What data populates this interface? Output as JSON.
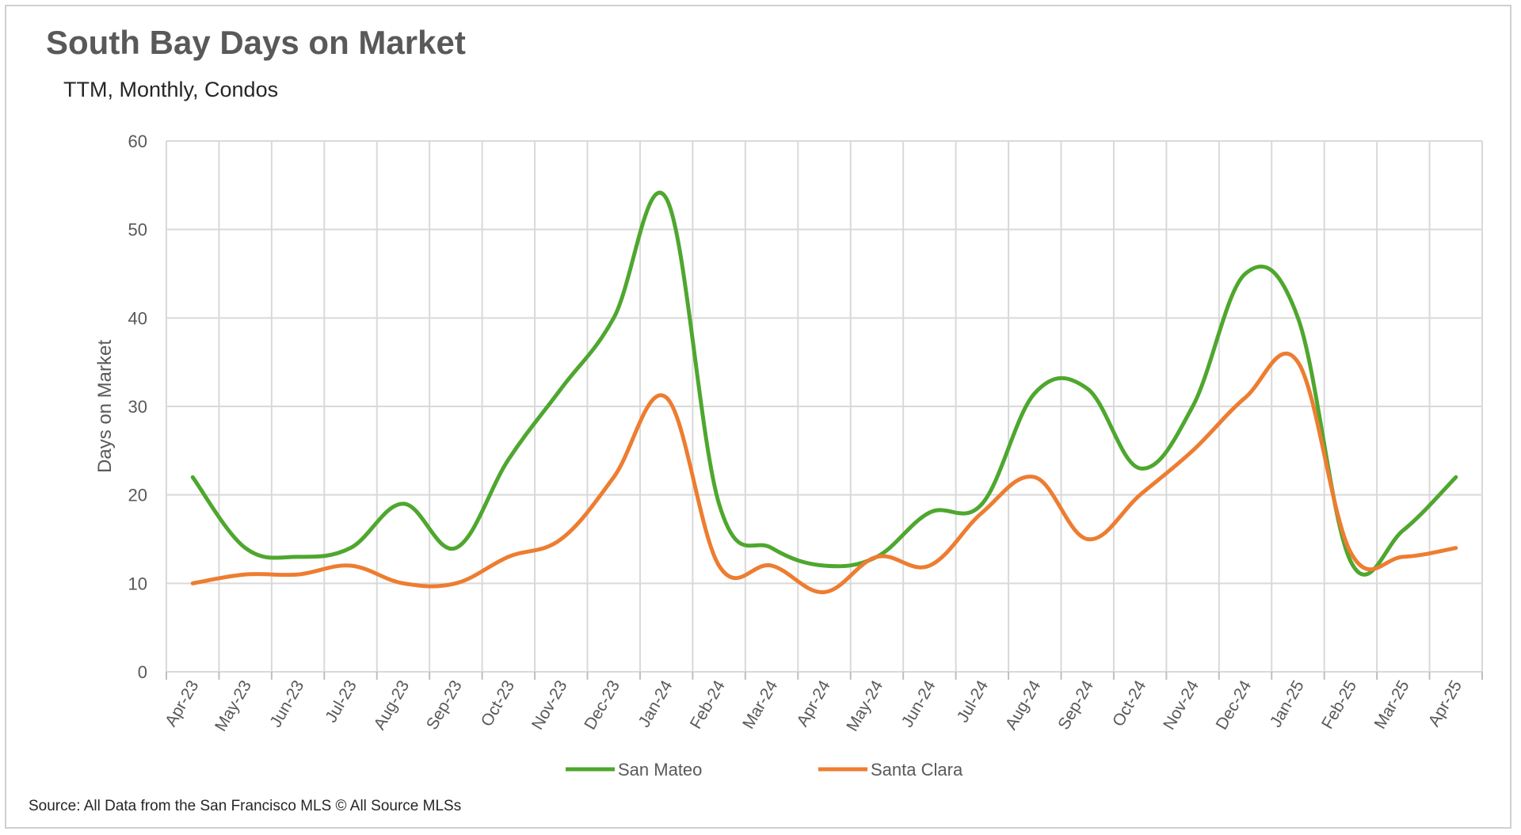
{
  "title": "South Bay Days on Market",
  "subtitle": "TTM, Monthly, Condos",
  "source": "Source: All Data from the San Francisco MLS © All Source MLSs",
  "chart_data": {
    "type": "line",
    "title": "South Bay Days on Market",
    "subtitle": "TTM, Monthly, Condos",
    "xlabel": "",
    "ylabel": "Days on Market",
    "ylim": [
      0,
      60
    ],
    "yticks": [
      0,
      10,
      20,
      30,
      40,
      50,
      60
    ],
    "grid": true,
    "legend_position": "bottom",
    "categories": [
      "Apr-23",
      "May-23",
      "Jun-23",
      "Jul-23",
      "Aug-23",
      "Sep-23",
      "Oct-23",
      "Nov-23",
      "Dec-23",
      "Jan-24",
      "Feb-24",
      "Mar-24",
      "Apr-24",
      "May-24",
      "Jun-24",
      "Jul-24",
      "Aug-24",
      "Sep-24",
      "Oct-24",
      "Nov-24",
      "Dec-24",
      "Jan-25",
      "Feb-25",
      "Mar-25",
      "Apr-25"
    ],
    "series": [
      {
        "name": "San Mateo",
        "color": "#4EA72E",
        "values": [
          22,
          14,
          13,
          14,
          19,
          14,
          24,
          32,
          40,
          53.5,
          19,
          14,
          12,
          13,
          18,
          19,
          31.5,
          32,
          23,
          30,
          45,
          40,
          12.5,
          16,
          22
        ]
      },
      {
        "name": "Santa Clara",
        "color": "#ED7D31",
        "values": [
          10,
          11,
          11,
          12,
          10,
          10,
          13,
          15,
          22,
          31,
          12,
          12,
          9,
          13,
          12,
          18,
          22,
          15,
          20,
          25,
          31,
          35,
          13.5,
          13,
          14
        ]
      }
    ]
  }
}
